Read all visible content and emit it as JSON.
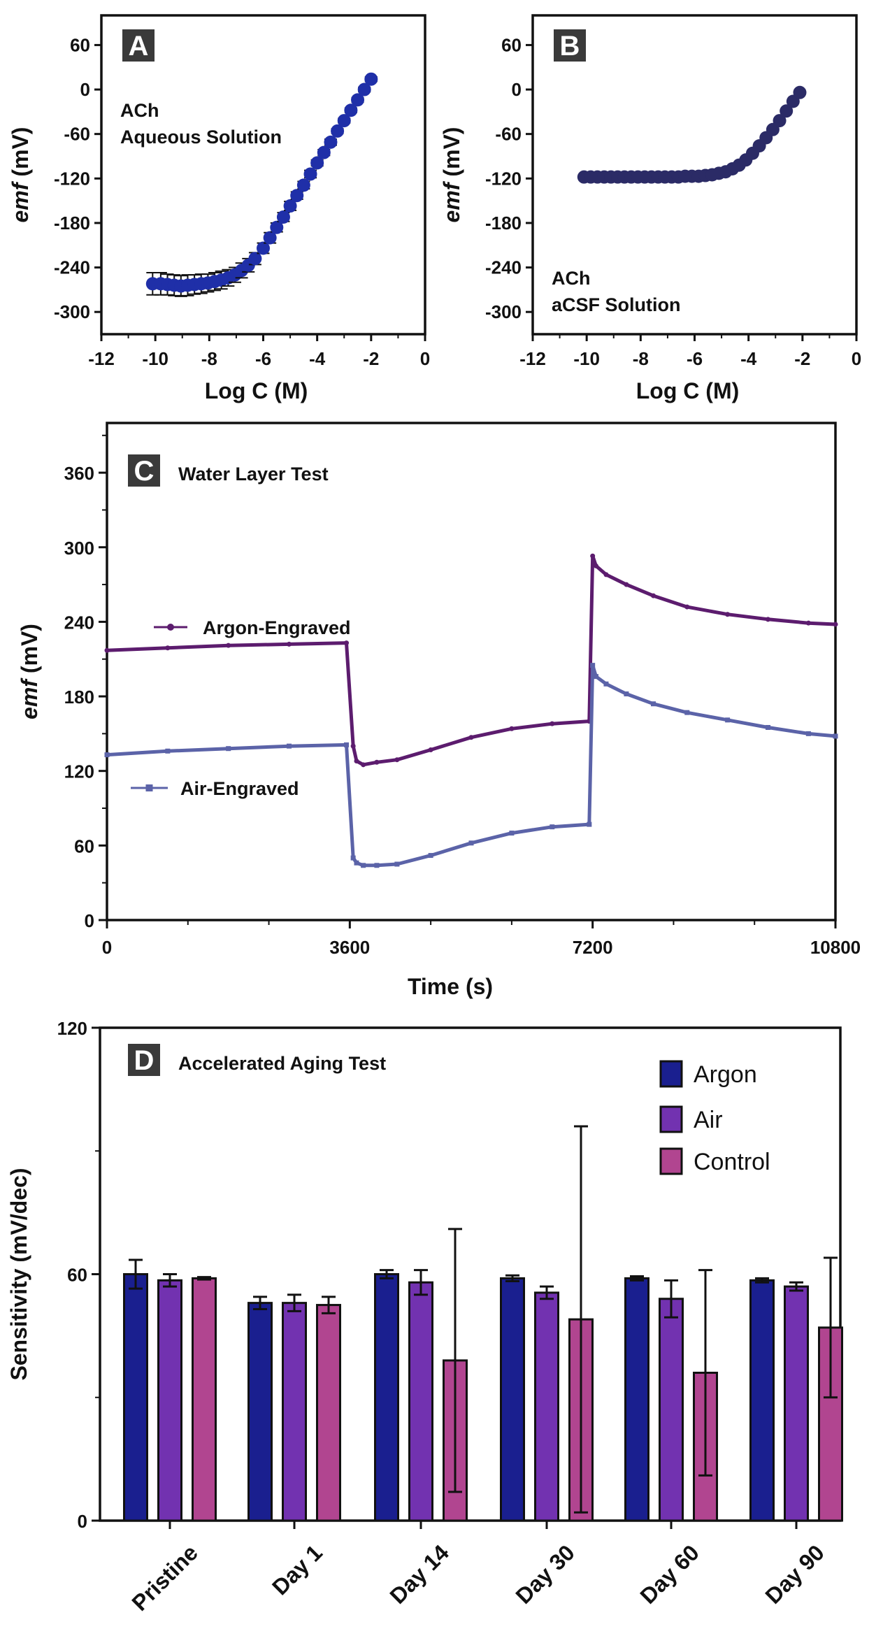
{
  "chart_data": [
    {
      "panel": "A",
      "type": "scatter",
      "annotation": [
        "ACh",
        "Aqueous Solution"
      ],
      "xlabel": "Log C (M)",
      "ylabel": "emf (mV)",
      "xlim": [
        -12,
        0
      ],
      "ylim": [
        -330,
        100
      ],
      "xticks": [
        -12,
        -10,
        -8,
        -6,
        -4,
        -2,
        0
      ],
      "yticks": [
        60,
        0,
        -60,
        -120,
        -180,
        -240,
        -300
      ],
      "color": "#1f2fa8",
      "x": [
        -10.1,
        -9.8,
        -9.55,
        -9.3,
        -9.05,
        -8.8,
        -8.55,
        -8.3,
        -8.05,
        -7.8,
        -7.55,
        -7.3,
        -7.05,
        -6.8,
        -6.55,
        -6.3,
        -6.0,
        -5.75,
        -5.5,
        -5.25,
        -5.0,
        -4.75,
        -4.5,
        -4.25,
        -4.0,
        -3.75,
        -3.5,
        -3.25,
        -3.0,
        -2.75,
        -2.5,
        -2.25,
        -2.0
      ],
      "y": [
        -262,
        -262,
        -263,
        -264,
        -265,
        -264,
        -263,
        -262,
        -261,
        -259,
        -257,
        -254,
        -250,
        -244,
        -237,
        -228,
        -214,
        -200,
        -186,
        -172,
        -157,
        -143,
        -129,
        -114,
        -99,
        -85,
        -71,
        -56,
        -42,
        -28,
        -14,
        0,
        14
      ],
      "err": [
        15,
        15,
        14,
        14,
        14,
        14,
        13,
        13,
        12,
        12,
        12,
        11,
        10,
        10,
        9,
        8,
        7,
        7,
        6,
        6,
        6,
        5,
        5,
        5,
        4,
        4,
        4,
        3,
        3,
        3,
        3,
        3,
        3
      ]
    },
    {
      "panel": "B",
      "type": "scatter",
      "annotation": [
        "ACh",
        "aCSF Solution"
      ],
      "xlabel": "Log C (M)",
      "ylabel": "emf (mV)",
      "xlim": [
        -12,
        0
      ],
      "ylim": [
        -330,
        100
      ],
      "xticks": [
        -12,
        -10,
        -8,
        -6,
        -4,
        -2,
        0
      ],
      "yticks": [
        60,
        0,
        -60,
        -120,
        -180,
        -240,
        -300
      ],
      "color": "#2b2b66",
      "x": [
        -10.1,
        -9.85,
        -9.6,
        -9.35,
        -9.1,
        -8.85,
        -8.6,
        -8.35,
        -8.1,
        -7.85,
        -7.6,
        -7.35,
        -7.1,
        -6.85,
        -6.6,
        -6.35,
        -6.1,
        -5.85,
        -5.6,
        -5.35,
        -5.1,
        -4.85,
        -4.6,
        -4.35,
        -4.1,
        -3.85,
        -3.6,
        -3.35,
        -3.1,
        -2.85,
        -2.6,
        -2.35,
        -2.1
      ],
      "y": [
        -118,
        -118,
        -118,
        -118,
        -118,
        -118,
        -118,
        -118,
        -118,
        -118,
        -118,
        -118,
        -118,
        -118,
        -118,
        -117,
        -117,
        -117,
        -116,
        -115,
        -113,
        -111,
        -107,
        -102,
        -95,
        -86,
        -76,
        -65,
        -54,
        -42,
        -29,
        -16,
        -4
      ]
    },
    {
      "panel": "C",
      "type": "line",
      "title": "Water Layer Test",
      "xlabel": "Time (s)",
      "ylabel": "emf (mV)",
      "xlim": [
        0,
        10800
      ],
      "ylim": [
        0,
        400
      ],
      "xticks": [
        0,
        3600,
        7200,
        10800
      ],
      "yticks": [
        0,
        60,
        120,
        180,
        240,
        300,
        360
      ],
      "series": [
        {
          "name": "Argon-Engraved",
          "color": "#5c1c6e",
          "marker": "circle",
          "x": [
            0,
            900,
            1800,
            2700,
            3550,
            3650,
            3700,
            3800,
            4000,
            4300,
            4800,
            5400,
            6000,
            6600,
            7150,
            7200,
            7250,
            7400,
            7700,
            8100,
            8600,
            9200,
            9800,
            10400,
            10800
          ],
          "y": [
            217,
            219,
            221,
            222,
            223,
            140,
            128,
            125,
            127,
            129,
            137,
            147,
            154,
            158,
            160,
            293,
            285,
            278,
            270,
            261,
            252,
            246,
            242,
            239,
            238
          ]
        },
        {
          "name": "Air-Engraved",
          "color": "#5b63a8",
          "marker": "square",
          "x": [
            0,
            900,
            1800,
            2700,
            3550,
            3650,
            3700,
            3800,
            4000,
            4300,
            4800,
            5400,
            6000,
            6600,
            7150,
            7200,
            7250,
            7400,
            7700,
            8100,
            8600,
            9200,
            9800,
            10400,
            10800
          ],
          "y": [
            133,
            136,
            138,
            140,
            141,
            50,
            46,
            44,
            44,
            45,
            52,
            62,
            70,
            75,
            77,
            205,
            196,
            190,
            182,
            174,
            167,
            161,
            155,
            150,
            148
          ]
        }
      ]
    },
    {
      "panel": "D",
      "type": "bar",
      "title": "Accelerated Aging Test",
      "xlabel": "",
      "ylabel": "Sensitivity (mV/dec)",
      "ylim": [
        0,
        120
      ],
      "yticks": [
        0,
        60,
        120
      ],
      "categories": [
        "Pristine",
        "Day 1",
        "Day 14",
        "Day 30",
        "Day 60",
        "Day 90"
      ],
      "series": [
        {
          "name": "Argon",
          "color": "#1a1f8f",
          "values": [
            60,
            53,
            60,
            59,
            59,
            58.5
          ],
          "err": [
            3.5,
            1.5,
            1,
            0.7,
            0.5,
            0.5
          ]
        },
        {
          "name": "Air",
          "color": "#7232b0",
          "values": [
            58.5,
            53,
            58,
            55.5,
            54,
            57
          ],
          "err": [
            1.5,
            2,
            3,
            1.5,
            4.5,
            1
          ]
        },
        {
          "name": "Control",
          "color": "#b14590",
          "values": [
            59,
            52.5,
            39,
            49,
            36,
            47
          ],
          "err": [
            0.3,
            2,
            32,
            47,
            25,
            17
          ]
        }
      ]
    }
  ]
}
